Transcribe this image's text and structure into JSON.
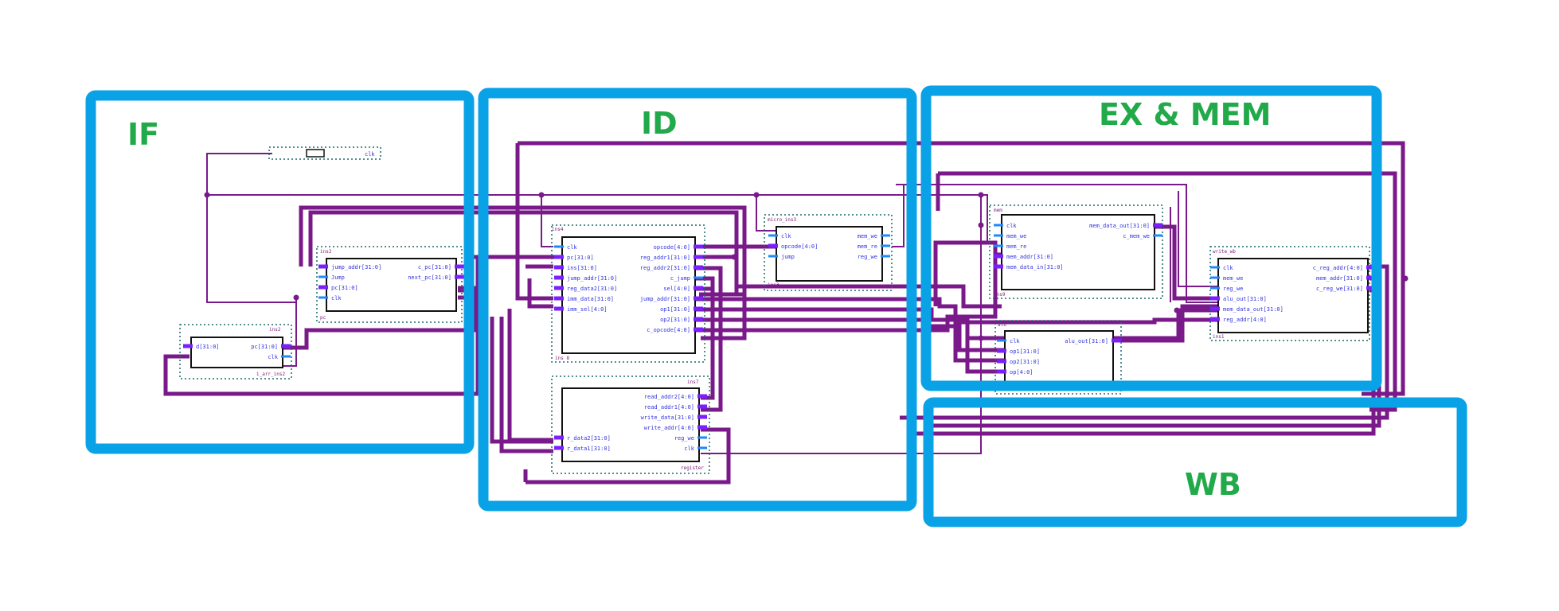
{
  "stages": {
    "if": "IF",
    "id": "ID",
    "ex_mem": "EX & MEM",
    "wb": "WB"
  },
  "colors": {
    "stage_border": "#0aa2e6",
    "stage_label": "#22aa4a",
    "wire": "#7a1a8a",
    "port": "#3333dd",
    "port_stub": "#1e88ff",
    "bus_stub": "#7b1fff",
    "block_border": "#111111",
    "dotted_group": "#1a6a6a"
  },
  "blocks": {
    "clk": {
      "instance": "",
      "left_ports": [],
      "right_ports": [
        "clk"
      ]
    },
    "pc_calc": {
      "instance": "ins2",
      "footer": "pc",
      "left_ports": [
        "jump_addr[31:0]",
        "Jump",
        "pc[31:0]",
        "clk"
      ],
      "right_ports": [
        "c_pc[31:0]",
        "next_pc[31:0]"
      ]
    },
    "pc_reg": {
      "instance": "ins2",
      "footer": "i_arr_ins2",
      "left_ports": [
        "d[31:0]"
      ],
      "right_ports": [
        "pc[31:0]",
        "clk"
      ]
    },
    "decoder": {
      "instance": "ins4",
      "footer": "ins 8",
      "left_ports": [
        "clk",
        "pc[31:0]",
        "ins[31:0]",
        "jump_addr[31:0]",
        "reg_data2[31:0]",
        "imm_data[31:0]",
        "imm_sel[4:0]"
      ],
      "right_ports": [
        "opcode[4:0]",
        "reg_addr1[31:0]",
        "reg_addr2[31:0]",
        "c_jump",
        "sel[4:0]",
        "jump_addr[31:0]",
        "op1[31:0]",
        "op2[31:0]",
        "c_opcode[4:0]"
      ]
    },
    "register": {
      "instance": "ins7",
      "footer": "register",
      "left_ports": [
        "r_data2[31:0]",
        "r_data1[31:0]"
      ],
      "right_ports": [
        "read_addr2[4:0]",
        "read_addr1[4:0]",
        "write_data[31:0]",
        "write_addr[4:0]",
        "reg_we",
        "clk"
      ]
    },
    "micro": {
      "instance": "micro_ins3",
      "footer": "ins3",
      "left_ports": [
        "clk",
        "opcode[4:0]",
        "jump"
      ],
      "right_ports": [
        "mem_we",
        "mem_re",
        "reg_we"
      ]
    },
    "memory": {
      "instance": "mem",
      "footer": "ins9",
      "left_ports": [
        "clk",
        "mem_we",
        "mem_re",
        "mem_addr[31:0]",
        "mem_data_in[31:0]"
      ],
      "right_ports": [
        "mem_data_out[31:0]",
        "c_mem_we"
      ]
    },
    "alu": {
      "instance": "alu",
      "footer": "",
      "left_ports": [
        "clk",
        "op1[31:0]",
        "op2[31:0]",
        "op[4:0]"
      ],
      "right_ports": [
        "alu_out[31:0]"
      ]
    },
    "write_back": {
      "instance": "write_wb",
      "footer": "ins1",
      "left_ports": [
        "clk",
        "mem_we",
        "reg_we",
        "alu_out[31:0]",
        "mem_data_out[31:0]",
        "reg_addr[4:0]"
      ],
      "right_ports": [
        "c_reg_addr[4:0]",
        "mem_addr[31:0]",
        "c_reg_we[31:0]"
      ]
    }
  }
}
